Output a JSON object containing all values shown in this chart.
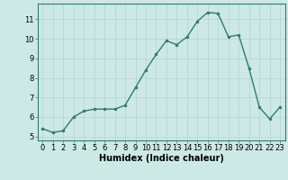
{
  "x": [
    0,
    1,
    2,
    3,
    4,
    5,
    6,
    7,
    8,
    9,
    10,
    11,
    12,
    13,
    14,
    15,
    16,
    17,
    18,
    19,
    20,
    21,
    22,
    23
  ],
  "y": [
    5.4,
    5.2,
    5.3,
    6.0,
    6.3,
    6.4,
    6.4,
    6.4,
    6.6,
    7.5,
    8.4,
    9.2,
    9.9,
    9.7,
    10.1,
    10.9,
    11.35,
    11.3,
    10.1,
    10.2,
    8.5,
    6.5,
    5.9,
    6.5
  ],
  "line_color": "#2e7d6e",
  "marker": ".",
  "markersize": 3,
  "linewidth": 1.0,
  "xlabel": "Humidex (Indice chaleur)",
  "xlabel_fontsize": 7,
  "xlim": [
    -0.5,
    23.5
  ],
  "ylim": [
    4.8,
    11.8
  ],
  "yticks": [
    5,
    6,
    7,
    8,
    9,
    10,
    11
  ],
  "xticks": [
    0,
    1,
    2,
    3,
    4,
    5,
    6,
    7,
    8,
    9,
    10,
    11,
    12,
    13,
    14,
    15,
    16,
    17,
    18,
    19,
    20,
    21,
    22,
    23
  ],
  "bg_color": "#cce9e5",
  "grid_color": "#b8d8d4",
  "tick_fontsize": 6,
  "axes_edge_color": "#2e7d6e"
}
